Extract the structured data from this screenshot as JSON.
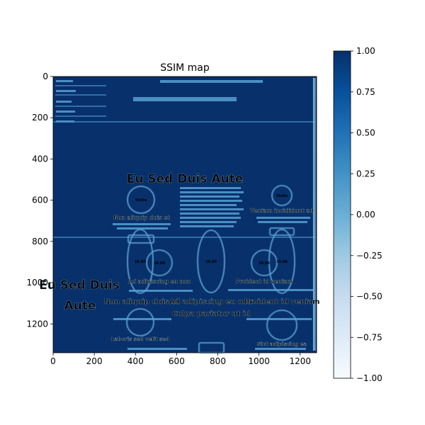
{
  "chart_data": {
    "type": "heatmap",
    "title": "SSIM map",
    "xlabel": "",
    "ylabel": "",
    "xlim": [
      0,
      1280
    ],
    "ylim": [
      1340,
      0
    ],
    "x_ticks": [
      "0",
      "200",
      "400",
      "600",
      "800",
      "1000",
      "1200"
    ],
    "y_ticks": [
      "0",
      "200",
      "400",
      "600",
      "800",
      "1000",
      "1200"
    ],
    "colormap": "Blues",
    "colorbar": {
      "range": [
        -1.0,
        1.0
      ],
      "ticks": [
        "1.00",
        "0.75",
        "0.50",
        "0.25",
        "0.00",
        "−0.25",
        "−0.50",
        "−0.75",
        "−1.00"
      ]
    },
    "visible_text": {
      "center_heading": "Eu Sed Duis Aute",
      "left_heading_line1": "Eu Sed Duis",
      "left_heading_line2": "Aute",
      "caption_left_top": "Non aliquip duis et",
      "caption_right_top": "Veniam incididunt ad",
      "caption_left_mid": "Ad adipiscing eu non",
      "caption_right_mid": "Proident id veniam",
      "caption_left_low": "Non aliquip duis et",
      "caption_center_low": "Ad adipiscing eu non",
      "caption_right_low": "Proident id veniam",
      "caption_center_bottom": "Culpa pariatur ut id",
      "caption_left_bottom": "Laboris sed velit sed",
      "caption_right_bottom": "Sint adipiscing ea"
    }
  },
  "colors": {
    "background": "#08306b",
    "mid": "#4292c6",
    "light": "#c6dbef",
    "lowest": "#f7fbff"
  }
}
